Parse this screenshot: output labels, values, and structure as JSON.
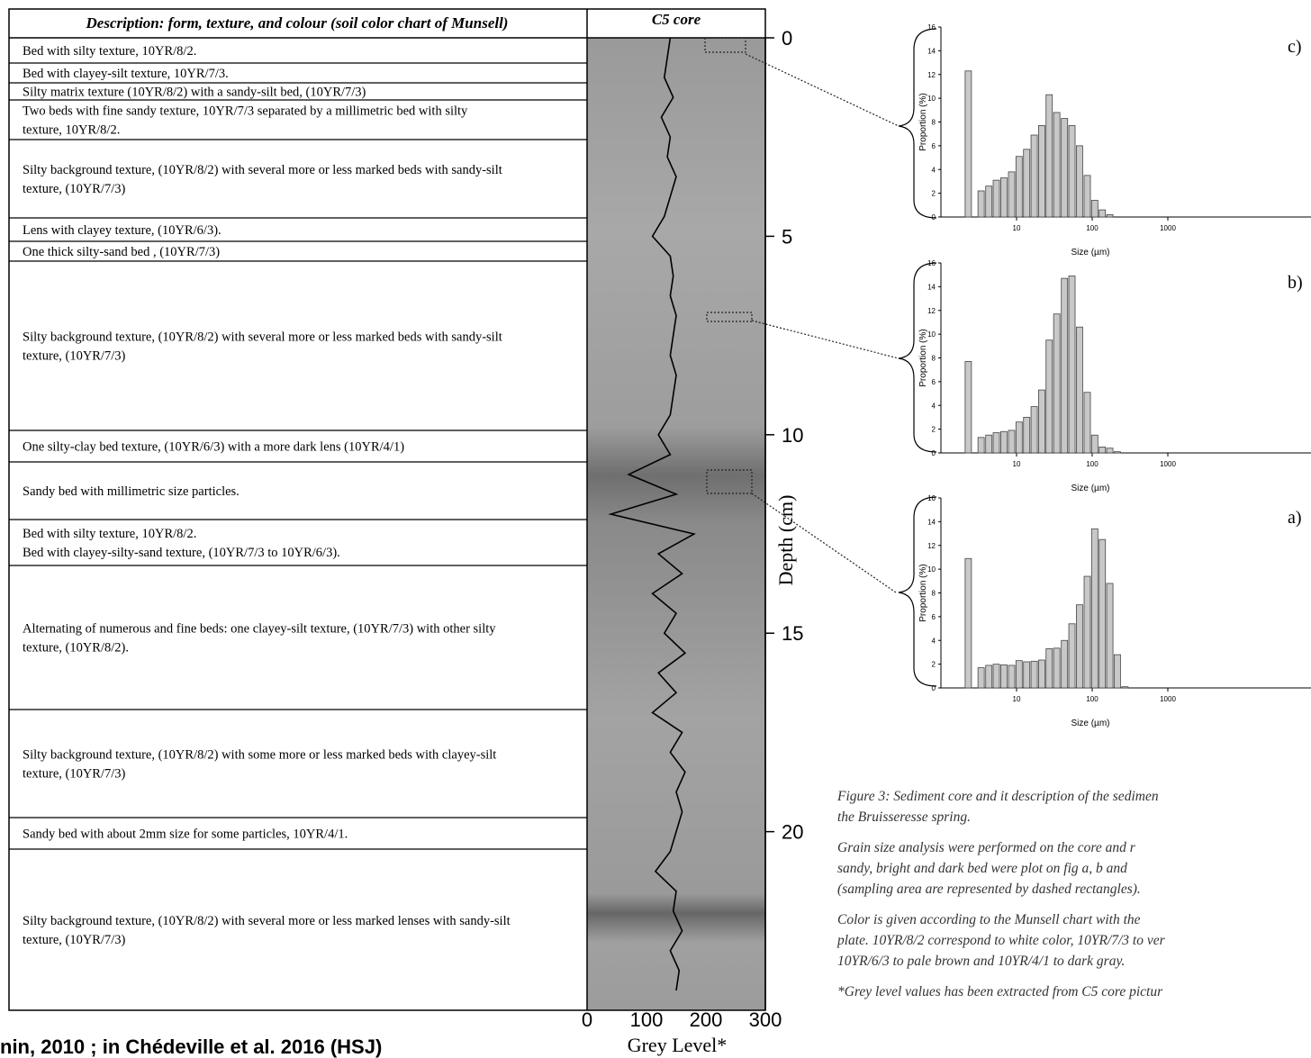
{
  "table": {
    "header": [
      "Description: form, texture, and colour (soil color chart of Munsell)",
      "C5 core"
    ],
    "rows": [
      [
        "Bed with silty texture, 10YR/8/2."
      ],
      [
        "Bed with clayey-silt texture, 10YR/7/3."
      ],
      [
        "Silty matrix texture (10YR/8/2) with a sandy-silt bed, (10YR/7/3)"
      ],
      [
        "Two beds with fine sandy texture, 10YR/7/3 separated by a millimetric bed with silty",
        "texture, 10YR/8/2."
      ],
      [
        "Silty background texture, (10YR/8/2) with several more or less marked beds with sandy-silt",
        "texture, (10YR/7/3)"
      ],
      [
        "Lens with clayey texture, (10YR/6/3)."
      ],
      [
        "One thick silty-sand bed , (10YR/7/3)"
      ],
      [
        "Silty background texture, (10YR/8/2) with several more or less marked beds with sandy-silt",
        "texture, (10YR/7/3)"
      ],
      [
        "One silty-clay bed texture, (10YR/6/3) with a more dark lens (10YR/4/1)"
      ],
      [
        "Sandy bed with millimetric size particles."
      ],
      [
        "Bed with silty texture, 10YR/8/2.",
        "Bed with clayey-silty-sand texture, (10YR/7/3 to 10YR/6/3)."
      ],
      [
        "Alternating of numerous and fine beds: one clayey-silt texture, (10YR/7/3) with other silty",
        "texture, (10YR/8/2)."
      ],
      [
        "Silty background texture, (10YR/8/2) with some more or less marked beds with clayey-silt",
        "texture, (10YR/7/3)"
      ],
      [
        "Sandy bed with about 2mm size for some particles, 10YR/4/1."
      ],
      [
        "Silty background texture, (10YR/8/2) with several more or less marked lenses with sandy-silt",
        "texture, (10YR/7/3)"
      ]
    ]
  },
  "chart_data": [
    {
      "type": "profile",
      "x_label": "Grey Level*",
      "y_label": "Depth (cm)",
      "color": "#000000",
      "depth": [
        0,
        0.5,
        1,
        1.5,
        2,
        2.5,
        3,
        3.5,
        4,
        4.5,
        5,
        5.5,
        6,
        6.5,
        7,
        7.5,
        8,
        8.5,
        9,
        9.5,
        10,
        10.5,
        11,
        11.5,
        12,
        12.5,
        13,
        13.5,
        14,
        14.5,
        15,
        15.5,
        16,
        16.5,
        17,
        17.5,
        18,
        18.5,
        19,
        19.5,
        20,
        20.5,
        21,
        21.5,
        22,
        22.5,
        23,
        23.5,
        24
      ],
      "values": [
        140,
        135,
        130,
        145,
        125,
        140,
        135,
        150,
        140,
        130,
        110,
        140,
        145,
        140,
        150,
        145,
        140,
        150,
        145,
        140,
        120,
        140,
        70,
        150,
        40,
        180,
        120,
        160,
        110,
        150,
        130,
        165,
        120,
        150,
        110,
        160,
        140,
        165,
        150,
        160,
        150,
        140,
        115,
        150,
        145,
        160,
        140,
        155,
        150
      ],
      "xlim": [
        0,
        300
      ],
      "xticks": [
        0,
        100,
        200,
        300
      ],
      "ylim": [
        0,
        24.5
      ],
      "yticks": [
        0,
        5,
        10,
        15,
        20
      ]
    },
    {
      "type": "bar",
      "panel_label": "c)",
      "x_label": "Size (µm)",
      "y_label": "Proportion (%)",
      "color": "#c8c8c8",
      "log_x": true,
      "x": [
        2.3,
        3.4,
        4.3,
        5.4,
        6.8,
        8.6,
        10.8,
        13.6,
        17.1,
        21.5,
        27,
        34,
        43,
        54,
        68,
        86,
        108,
        136,
        171
      ],
      "values": [
        12.3,
        2.2,
        2.6,
        3.1,
        3.3,
        3.8,
        5.1,
        5.7,
        6.9,
        7.7,
        10.3,
        8.8,
        8.3,
        7.7,
        6.0,
        3.5,
        1.4,
        0.6,
        0.2
      ],
      "xlim": [
        1,
        10000
      ],
      "xticks": [
        10,
        100,
        1000
      ],
      "ylim": [
        0,
        16
      ],
      "yticks": [
        0,
        2,
        4,
        6,
        8,
        10,
        12,
        14,
        16
      ]
    },
    {
      "type": "bar",
      "panel_label": "b)",
      "x_label": "Size (µm)",
      "y_label": "Proportion (%)",
      "color": "#c8c8c8",
      "log_x": true,
      "x": [
        2.3,
        3.4,
        4.3,
        5.4,
        6.8,
        8.6,
        10.8,
        13.6,
        17.1,
        21.5,
        27,
        34,
        43,
        54,
        68,
        86,
        108,
        136,
        171,
        215
      ],
      "values": [
        7.7,
        1.3,
        1.5,
        1.7,
        1.8,
        1.9,
        2.6,
        3.0,
        3.9,
        5.3,
        9.5,
        11.7,
        14.7,
        14.9,
        10.6,
        5.1,
        1.5,
        0.5,
        0.4,
        0.1
      ],
      "xlim": [
        1,
        10000
      ],
      "xticks": [
        10,
        100,
        1000
      ],
      "ylim": [
        0,
        16
      ],
      "yticks": [
        0,
        2,
        4,
        6,
        8,
        10,
        12,
        14,
        16
      ]
    },
    {
      "type": "bar",
      "panel_label": "a)",
      "x_label": "Size (µm)",
      "y_label": "Proportion (%)",
      "color": "#c8c8c8",
      "log_x": true,
      "x": [
        2.3,
        3.4,
        4.3,
        5.4,
        6.8,
        8.6,
        10.8,
        13.6,
        17.1,
        21.5,
        27,
        34,
        43,
        54,
        68,
        86,
        108,
        136,
        171,
        215,
        271
      ],
      "values": [
        10.9,
        1.7,
        1.9,
        2.0,
        1.95,
        1.9,
        2.3,
        2.2,
        2.25,
        2.35,
        3.3,
        3.35,
        4.0,
        5.4,
        7.0,
        9.4,
        13.4,
        12.5,
        8.8,
        2.8,
        0.1
      ],
      "xlim": [
        1,
        10000
      ],
      "xticks": [
        10,
        100,
        1000
      ],
      "ylim": [
        0,
        16
      ],
      "yticks": [
        0,
        2,
        4,
        6,
        8,
        10,
        12,
        14,
        16
      ]
    }
  ],
  "caption": {
    "paragraphs": [
      [
        "Figure 3: Sediment core and it description of the sedimen",
        "the Bruisseresse spring."
      ],
      [
        "Grain size analysis were performed on the core and r",
        "sandy, bright and dark bed were plot on fig a, b and",
        "(sampling area are represented by dashed rectangles)."
      ],
      [
        "Color is given according to the Munsell chart with the",
        "plate. 10YR/8/2 correspond to white color, 10YR/7/3 to ver",
        "10YR/6/3 to pale brown and 10YR/4/1 to dark gray."
      ],
      [
        "*Grey level values has been extracted from C5 core pictur"
      ]
    ]
  },
  "credit": "nin, 2010 ; in Chédeville et al. 2016 (HSJ)"
}
